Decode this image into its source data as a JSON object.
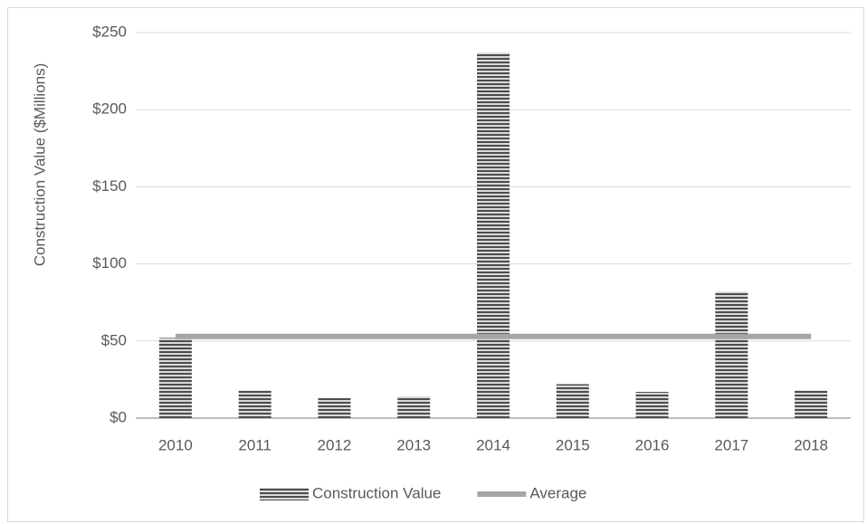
{
  "chart_data": {
    "type": "bar",
    "y_label": "Construction Value ($Millions)",
    "categories": [
      "2010",
      "2011",
      "2012",
      "2013",
      "2014",
      "2015",
      "2016",
      "2017",
      "2018"
    ],
    "series": [
      {
        "name": "Construction Value",
        "type": "bar",
        "color": "#4d4d4d",
        "values": [
          52,
          18,
          13,
          14,
          237,
          22,
          17,
          82,
          18
        ]
      },
      {
        "name": "Average",
        "type": "line",
        "color": "#a6a6a6",
        "values": [
          53,
          53,
          53,
          53,
          53,
          53,
          53,
          53,
          53
        ]
      }
    ],
    "ylim": [
      0,
      250
    ],
    "yticks": [
      {
        "value": 0,
        "label": "$0"
      },
      {
        "value": 50,
        "label": "$50"
      },
      {
        "value": 100,
        "label": "$100"
      },
      {
        "value": 150,
        "label": "$150"
      },
      {
        "value": 200,
        "label": "$200"
      },
      {
        "value": 250,
        "label": "$250"
      }
    ],
    "grid": true,
    "legend": "bottom"
  }
}
